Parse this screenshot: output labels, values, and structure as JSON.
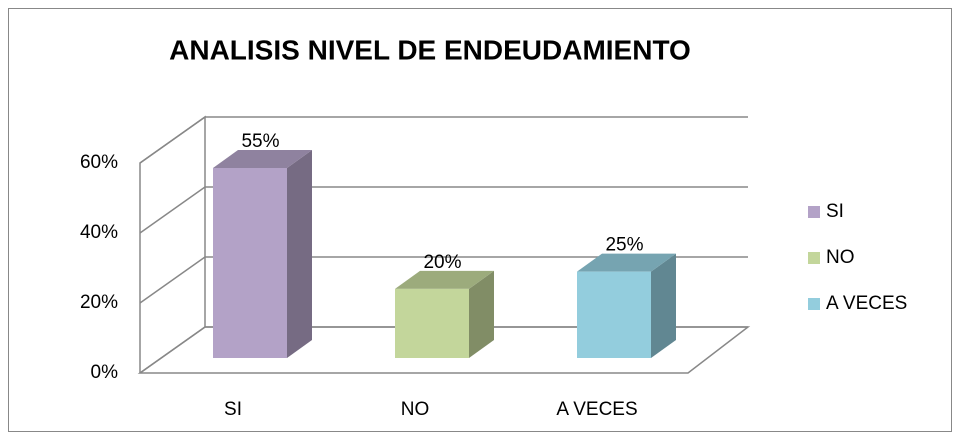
{
  "chart_data": {
    "type": "bar3d",
    "title": "ANALISIS NIVEL DE ENDEUDAMIENTO",
    "categories": [
      "SI",
      "NO",
      "A VECES"
    ],
    "values": [
      55,
      20,
      25
    ],
    "value_labels": [
      "55%",
      "20%",
      "25%"
    ],
    "colors": [
      "#b3a2c7",
      "#c3d69b",
      "#93cddd"
    ],
    "ylim": [
      0,
      60
    ],
    "yticks": [
      {
        "value": 0,
        "label": "0%"
      },
      {
        "value": 20,
        "label": "20%"
      },
      {
        "value": 40,
        "label": "40%"
      },
      {
        "value": 60,
        "label": "60%"
      }
    ],
    "grid": true,
    "legend": "right"
  }
}
